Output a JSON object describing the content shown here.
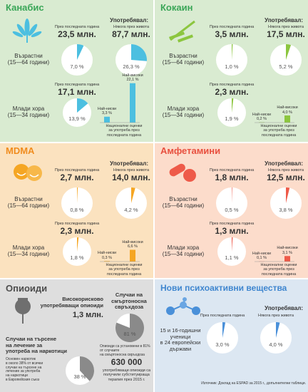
{
  "panels": [
    {
      "title": "Канабис",
      "usage": "Употребявал:",
      "last_year": "През последната година",
      "lifetime": "Някога през живота",
      "adults": {
        "label": "Възрастни\n(15—64 години)",
        "amounts": [
          "23,5 млн.",
          "87,7 млн."
        ],
        "values": [
          7.0,
          26.3
        ],
        "value_labels": [
          "7,0 %",
          "26,3 %"
        ]
      },
      "young": {
        "label": "Млади хора\n(15—34 години)",
        "amount": "17,1 млн.",
        "values": [
          13.9
        ],
        "value_labels": [
          "13,9 %"
        ]
      },
      "range": {
        "categories": [
          "Най-ниски",
          "Най-високи"
        ],
        "values": [
          3.3,
          22.1
        ],
        "value_labels": [
          "3,3 %",
          "22,1 %"
        ],
        "caption": "Национални оценки\nза употреба през\nпоследната година"
      },
      "color": "#4cbfe0",
      "title_color": "#3aa657",
      "background": "#d9ebd1"
    },
    {
      "title": "Кокаин",
      "usage": "Употребявал:",
      "last_year": "През последната година",
      "lifetime": "Някога през живота",
      "adults": {
        "label": "Възрастни\n(15—64 години)",
        "amounts": [
          "3,5 млн.",
          "17,5 млн."
        ],
        "values": [
          1.0,
          5.2
        ],
        "value_labels": [
          "1,0 %",
          "5,2 %"
        ]
      },
      "young": {
        "label": "Млади хора\n(15—34 години)",
        "amount": "2,3 млн.",
        "values": [
          1.9
        ],
        "value_labels": [
          "1,9 %"
        ]
      },
      "range": {
        "categories": [
          "Най-ниски",
          "Най-високи"
        ],
        "values": [
          0.2,
          4.0
        ],
        "value_labels": [
          "0,2 %",
          "4,0 %"
        ],
        "caption": "Национални оценки\nза употреба през\nпоследната година"
      },
      "color": "#8cc63f",
      "title_color": "#3aa657",
      "background": "#d9ebd1"
    },
    {
      "title": "MDMA",
      "usage": "Употребявал:",
      "last_year": "През последната година",
      "lifetime": "Някога през живота",
      "adults": {
        "label": "Възрастни\n(15—64 години)",
        "amounts": [
          "2,7 млн.",
          "14,0 млн."
        ],
        "values": [
          0.8,
          4.2
        ],
        "value_labels": [
          "0,8 %",
          "4,2 %"
        ]
      },
      "young": {
        "label": "Млади хора\n(15—34 години)",
        "amount": "2,3 млн.",
        "values": [
          1.8
        ],
        "value_labels": [
          "1,8 %"
        ]
      },
      "range": {
        "categories": [
          "Най-ниски",
          "Най-високи"
        ],
        "values": [
          0.3,
          6.6
        ],
        "value_labels": [
          "0,3 %",
          "6,6 %"
        ],
        "caption": "Национални оценки\nза употреба през\nпоследната година"
      },
      "color": "#f5a623",
      "title_color": "#f08c1e",
      "background": "#fbe2bf"
    },
    {
      "title": "Амфетамини",
      "usage": "Употребявал:",
      "last_year": "През последната година",
      "lifetime": "Някога през живота",
      "adults": {
        "label": "Възрастни\n(15—64 години)",
        "amounts": [
          "1,8 млн.",
          "12,5 млн."
        ],
        "values": [
          0.5,
          3.8
        ],
        "value_labels": [
          "0,5 %",
          "3,8 %"
        ]
      },
      "young": {
        "label": "Млади хора\n(15—34 години)",
        "amount": "1,3 млн.",
        "values": [
          1.1
        ],
        "value_labels": [
          "1,1 %"
        ]
      },
      "range": {
        "categories": [
          "Най-ниски",
          "Най-високи"
        ],
        "values": [
          0.1,
          3.1
        ],
        "value_labels": [
          "0,1 %",
          "3,1 %"
        ],
        "caption": "Национални оценки\nза употреба през\nпоследната година"
      },
      "color": "#ee5a49",
      "title_color": "#e8503f",
      "background": "#fcdccb"
    }
  ],
  "opioids": {
    "title": "Опиоиди",
    "high_risk": "Високорисково\nупотребяващи опиоиди",
    "high_risk_amount": "1,3 млн.",
    "overdose_title": "Случаи на\nсмъртоносна\nсвръхдоза",
    "overdose_value": 81,
    "overdose_label": "81 %",
    "overdose_note": "Опиоиди са установени в 81% от случаите\nна смъртоносна свръхдоза",
    "treatment_title": "Случаи на търсене\nна лечение за\nупотреба на наркотици",
    "treatment_value": 38,
    "treatment_label": "38 %",
    "treatment_note": "Основен наркотик\nв около 38% от всички\nслучаи на търсене на\nлечение за употреба\nна наркотици\nв Европейския съюз",
    "substitution_amount": "630 000",
    "substitution_note": "употребяващи опиоиди са\nполучили субституираща\nтерапия през 2015 г.",
    "color": "#8a8a8a",
    "title_color": "#4d4d4d",
    "background": "#dedede"
  },
  "nps": {
    "title": "Нови психоактивни вещества",
    "usage": "Употребявал:",
    "last_year": "През последната година",
    "lifetime": "Някога през живота",
    "label": "15 и 16-годишни\nученици\nв 24 европейски\nдържави",
    "values": [
      3.0,
      4.0
    ],
    "value_labels": [
      "3,0 %",
      "4,0 %"
    ],
    "source": "Източник: Доклад на ESPAD за 2015 г., допълнителни таблици.",
    "color": "#4a90d9",
    "title_color": "#3f86cf",
    "background": "#dce7f2"
  }
}
